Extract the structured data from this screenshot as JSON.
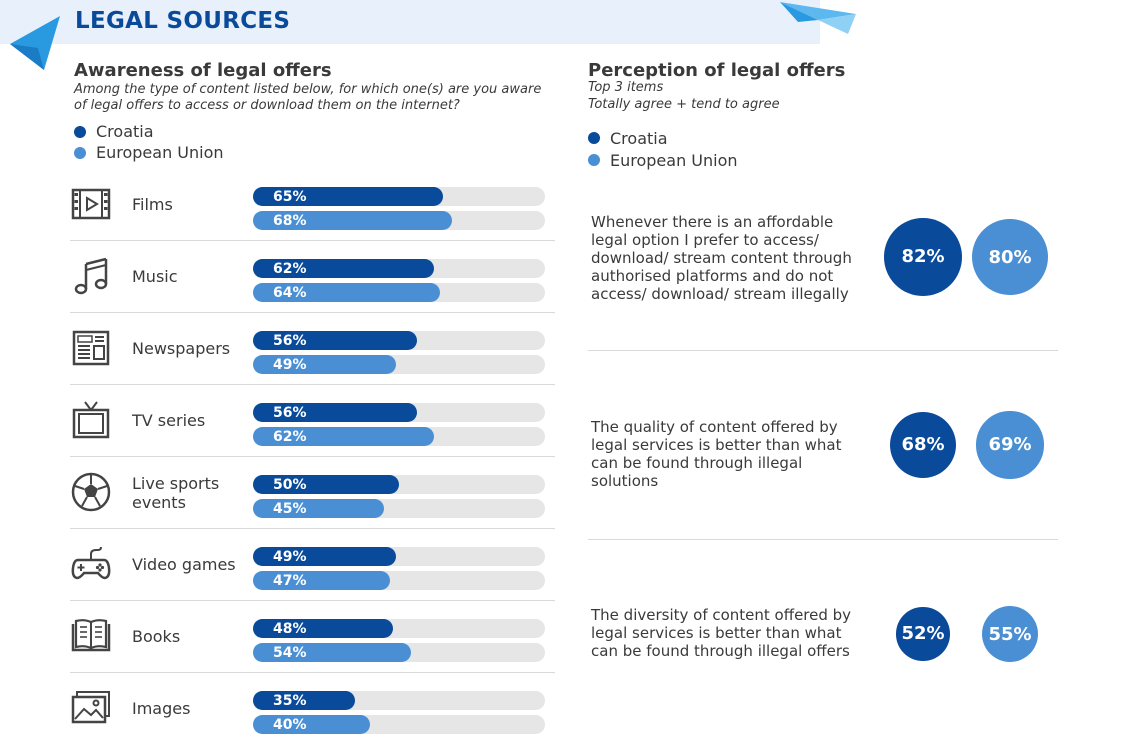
{
  "header": {
    "title": "LEGAL SOURCES"
  },
  "colors": {
    "croatia": "#0a4a9a",
    "eu": "#4a8fd4",
    "track": "#e6e6e6",
    "banner": "#e8f1fb"
  },
  "awareness": {
    "title": "Awareness of legal offers",
    "question": "Among the type of content listed below, for which one(s) are you aware of legal offers to access or download them on the internet?",
    "legend": {
      "croatia": "Croatia",
      "eu": "European Union"
    }
  },
  "perception": {
    "title": "Perception of legal offers",
    "subtitle_1": "Top 3 items",
    "subtitle_2": "Totally agree + tend to agree",
    "legend": {
      "croatia": "Croatia",
      "eu": "European Union"
    }
  },
  "chart_data": [
    {
      "type": "bar",
      "title": "Awareness of legal offers",
      "categories": [
        "Films",
        "Music",
        "Newspapers",
        "TV series",
        "Live sports events",
        "Video games",
        "Books",
        "Images"
      ],
      "icons": [
        "film-icon",
        "music-icon",
        "newspaper-icon",
        "tv-icon",
        "football-icon",
        "gamepad-icon",
        "book-icon",
        "image-icon"
      ],
      "series": [
        {
          "name": "Croatia",
          "values": [
            65,
            62,
            56,
            56,
            50,
            49,
            48,
            35
          ],
          "labels": [
            "65%",
            "62%",
            "56%",
            "56%",
            "50%",
            "49%",
            "48%",
            "35%"
          ]
        },
        {
          "name": "European Union",
          "values": [
            68,
            64,
            49,
            62,
            45,
            47,
            54,
            40
          ],
          "labels": [
            "68%",
            "64%",
            "49%",
            "62%",
            "45%",
            "47%",
            "54%",
            "40%"
          ]
        }
      ],
      "ylim": [
        0,
        100
      ]
    },
    {
      "type": "table",
      "title": "Perception of legal offers",
      "items": [
        {
          "text": "Whenever there is an affordable legal option I prefer to access/ download/ stream content through authorised platforms and do not access/ download/ stream illegally",
          "croatia": 82,
          "eu": 80,
          "croatia_label": "82%",
          "eu_label": "80%"
        },
        {
          "text": "The quality of content offered by legal services is better than what can be found through illegal solutions",
          "croatia": 68,
          "eu": 69,
          "croatia_label": "68%",
          "eu_label": "69%"
        },
        {
          "text": "The diversity of content offered by legal services is better than what can be found through illegal offers",
          "croatia": 52,
          "eu": 55,
          "croatia_label": "52%",
          "eu_label": "55%"
        }
      ]
    }
  ]
}
